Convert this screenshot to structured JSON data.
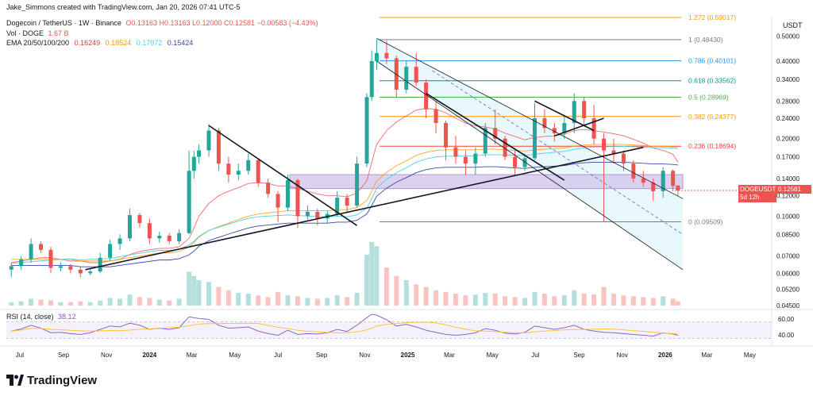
{
  "header": {
    "created_by": "Jake_Simmons created with TradingView.com, Jan 20, 2026 07:41 UTC-5"
  },
  "legend": {
    "symbol": "Dogecoin / TetherUS · 1W · Binance",
    "ohlc": "O0.13163 H0.13163 L0.12000 C0.12581 −0.00583 (−4.43%)",
    "vol_label": "Vol · DOGE",
    "vol_value": "1.67 B",
    "ema_label": "EMA 20/50/100/200",
    "ema_values": [
      {
        "text": "0.16249",
        "color": "#e53935"
      },
      {
        "text": "0.18524",
        "color": "#ff9800"
      },
      {
        "text": "0.17972",
        "color": "#4dd0e1"
      },
      {
        "text": "0.15424",
        "color": "#3949ab"
      }
    ]
  },
  "price_axis": {
    "currency": "USDT",
    "last_label": "DOGEUSDT",
    "last_value": "0.12581",
    "countdown": "5d 12h"
  },
  "rsi": {
    "label": "RSI (14, close)",
    "value": "38.12",
    "ticks": [
      "60.00",
      "40.00"
    ]
  },
  "brand": {
    "name": "TradingView"
  },
  "colors": {
    "up": "#26a69a",
    "down": "#ef5350",
    "trendline": "#131722",
    "channel_fill": "#e0f7fa",
    "zone_fill": "#d1c4e9",
    "rsi_line": "#7e57c2",
    "rsi_ma": "#fbc02d"
  },
  "chart_data": {
    "type": "candlestick",
    "title": "Dogecoin / TetherUS · 1W · Binance",
    "y_scale": "log",
    "ylim": [
      0.045,
      0.52
    ],
    "y_ticks": [
      "0.50000",
      "0.40000",
      "0.34000",
      "0.28000",
      "0.24000",
      "0.20000",
      "0.17000",
      "0.14000",
      "0.12000",
      "0.10000",
      "0.08500",
      "0.07000",
      "0.06000",
      "0.05200",
      "0.04500"
    ],
    "x_ticks": [
      "Jul",
      "Sep",
      "Nov",
      "2024",
      "Mar",
      "May",
      "Jul",
      "Sep",
      "Nov",
      "2025",
      "Mar",
      "May",
      "Jul",
      "Sep",
      "Nov",
      "2026",
      "Mar",
      "May"
    ],
    "x_range": [
      "2023-06-12",
      "2026-06-01"
    ],
    "fib_levels": [
      {
        "ratio": "1.272",
        "value": 0.59017,
        "label": "1.272 (0.59017)",
        "color": "#ff9800"
      },
      {
        "ratio": "1",
        "value": 0.4843,
        "label": "1 (0.48430)",
        "color": "#787b86"
      },
      {
        "ratio": "0.786",
        "value": 0.40101,
        "label": "0.786 (0.40101)",
        "color": "#2196f3"
      },
      {
        "ratio": "0.618",
        "value": 0.33562,
        "label": "0.618 (0.33562)",
        "color": "#009688"
      },
      {
        "ratio": "0.5",
        "value": 0.28969,
        "label": "0.5 (0.28969)",
        "color": "#4caf50"
      },
      {
        "ratio": "0.382",
        "value": 0.24377,
        "label": "0.382 (0.24377)",
        "color": "#ff9800"
      },
      {
        "ratio": "0.236",
        "value": 0.18694,
        "label": "0.236 (0.18694)",
        "color": "#f44336"
      },
      {
        "ratio": "0",
        "value": 0.09509,
        "label": "0 (0.09509)",
        "color": "#787b86"
      }
    ],
    "candles": [
      {
        "date": "2023-06-19",
        "o": 0.062,
        "h": 0.066,
        "l": 0.058,
        "c": 0.064
      },
      {
        "date": "2023-07-03",
        "o": 0.064,
        "h": 0.07,
        "l": 0.062,
        "c": 0.068
      },
      {
        "date": "2023-07-17",
        "o": 0.068,
        "h": 0.082,
        "l": 0.066,
        "c": 0.078
      },
      {
        "date": "2023-07-31",
        "o": 0.078,
        "h": 0.08,
        "l": 0.072,
        "c": 0.074
      },
      {
        "date": "2023-08-14",
        "o": 0.074,
        "h": 0.076,
        "l": 0.06,
        "c": 0.063
      },
      {
        "date": "2023-08-28",
        "o": 0.063,
        "h": 0.066,
        "l": 0.061,
        "c": 0.064
      },
      {
        "date": "2023-09-11",
        "o": 0.064,
        "h": 0.065,
        "l": 0.06,
        "c": 0.062
      },
      {
        "date": "2023-09-25",
        "o": 0.062,
        "h": 0.064,
        "l": 0.058,
        "c": 0.06
      },
      {
        "date": "2023-10-09",
        "o": 0.06,
        "h": 0.063,
        "l": 0.059,
        "c": 0.061
      },
      {
        "date": "2023-10-23",
        "o": 0.061,
        "h": 0.072,
        "l": 0.06,
        "c": 0.069
      },
      {
        "date": "2023-11-06",
        "o": 0.069,
        "h": 0.081,
        "l": 0.067,
        "c": 0.078
      },
      {
        "date": "2023-11-20",
        "o": 0.078,
        "h": 0.085,
        "l": 0.074,
        "c": 0.082
      },
      {
        "date": "2023-12-04",
        "o": 0.082,
        "h": 0.107,
        "l": 0.08,
        "c": 0.101
      },
      {
        "date": "2023-12-18",
        "o": 0.101,
        "h": 0.103,
        "l": 0.09,
        "c": 0.094
      },
      {
        "date": "2024-01-01",
        "o": 0.094,
        "h": 0.098,
        "l": 0.078,
        "c": 0.082
      },
      {
        "date": "2024-01-15",
        "o": 0.082,
        "h": 0.087,
        "l": 0.079,
        "c": 0.084
      },
      {
        "date": "2024-01-29",
        "o": 0.084,
        "h": 0.086,
        "l": 0.078,
        "c": 0.08
      },
      {
        "date": "2024-02-12",
        "o": 0.08,
        "h": 0.089,
        "l": 0.078,
        "c": 0.086
      },
      {
        "date": "2024-02-26",
        "o": 0.086,
        "h": 0.18,
        "l": 0.085,
        "c": 0.15
      },
      {
        "date": "2024-03-04",
        "o": 0.15,
        "h": 0.18,
        "l": 0.14,
        "c": 0.17
      },
      {
        "date": "2024-03-11",
        "o": 0.17,
        "h": 0.19,
        "l": 0.16,
        "c": 0.18
      },
      {
        "date": "2024-03-25",
        "o": 0.18,
        "h": 0.228,
        "l": 0.17,
        "c": 0.215
      },
      {
        "date": "2024-04-08",
        "o": 0.215,
        "h": 0.22,
        "l": 0.15,
        "c": 0.16
      },
      {
        "date": "2024-04-22",
        "o": 0.16,
        "h": 0.17,
        "l": 0.135,
        "c": 0.145
      },
      {
        "date": "2024-05-06",
        "o": 0.145,
        "h": 0.16,
        "l": 0.138,
        "c": 0.15
      },
      {
        "date": "2024-05-20",
        "o": 0.15,
        "h": 0.175,
        "l": 0.145,
        "c": 0.165
      },
      {
        "date": "2024-06-03",
        "o": 0.165,
        "h": 0.168,
        "l": 0.13,
        "c": 0.135
      },
      {
        "date": "2024-06-17",
        "o": 0.135,
        "h": 0.14,
        "l": 0.118,
        "c": 0.122
      },
      {
        "date": "2024-07-01",
        "o": 0.122,
        "h": 0.125,
        "l": 0.095,
        "c": 0.108
      },
      {
        "date": "2024-07-15",
        "o": 0.108,
        "h": 0.145,
        "l": 0.105,
        "c": 0.138
      },
      {
        "date": "2024-07-29",
        "o": 0.138,
        "h": 0.14,
        "l": 0.09,
        "c": 0.1
      },
      {
        "date": "2024-08-12",
        "o": 0.1,
        "h": 0.11,
        "l": 0.097,
        "c": 0.104
      },
      {
        "date": "2024-08-26",
        "o": 0.104,
        "h": 0.107,
        "l": 0.092,
        "c": 0.098
      },
      {
        "date": "2024-09-09",
        "o": 0.098,
        "h": 0.105,
        "l": 0.094,
        "c": 0.102
      },
      {
        "date": "2024-09-23",
        "o": 0.102,
        "h": 0.125,
        "l": 0.1,
        "c": 0.118
      },
      {
        "date": "2024-10-07",
        "o": 0.118,
        "h": 0.122,
        "l": 0.104,
        "c": 0.11
      },
      {
        "date": "2024-10-21",
        "o": 0.11,
        "h": 0.17,
        "l": 0.108,
        "c": 0.16
      },
      {
        "date": "2024-11-04",
        "o": 0.16,
        "h": 0.3,
        "l": 0.155,
        "c": 0.29
      },
      {
        "date": "2024-11-11",
        "o": 0.29,
        "h": 0.44,
        "l": 0.28,
        "c": 0.4
      },
      {
        "date": "2024-11-18",
        "o": 0.4,
        "h": 0.484,
        "l": 0.37,
        "c": 0.43
      },
      {
        "date": "2024-12-02",
        "o": 0.43,
        "h": 0.48,
        "l": 0.39,
        "c": 0.41
      },
      {
        "date": "2024-12-16",
        "o": 0.41,
        "h": 0.42,
        "l": 0.29,
        "c": 0.31
      },
      {
        "date": "2024-12-30",
        "o": 0.31,
        "h": 0.4,
        "l": 0.3,
        "c": 0.38
      },
      {
        "date": "2025-01-13",
        "o": 0.38,
        "h": 0.43,
        "l": 0.32,
        "c": 0.33
      },
      {
        "date": "2025-01-27",
        "o": 0.33,
        "h": 0.34,
        "l": 0.24,
        "c": 0.26
      },
      {
        "date": "2025-02-10",
        "o": 0.26,
        "h": 0.28,
        "l": 0.21,
        "c": 0.23
      },
      {
        "date": "2025-02-24",
        "o": 0.23,
        "h": 0.235,
        "l": 0.165,
        "c": 0.185
      },
      {
        "date": "2025-03-10",
        "o": 0.185,
        "h": 0.205,
        "l": 0.16,
        "c": 0.17
      },
      {
        "date": "2025-03-24",
        "o": 0.17,
        "h": 0.18,
        "l": 0.145,
        "c": 0.16
      },
      {
        "date": "2025-04-07",
        "o": 0.16,
        "h": 0.185,
        "l": 0.145,
        "c": 0.175
      },
      {
        "date": "2025-04-21",
        "o": 0.175,
        "h": 0.23,
        "l": 0.17,
        "c": 0.22
      },
      {
        "date": "2025-05-05",
        "o": 0.22,
        "h": 0.26,
        "l": 0.19,
        "c": 0.2
      },
      {
        "date": "2025-05-19",
        "o": 0.2,
        "h": 0.205,
        "l": 0.165,
        "c": 0.17
      },
      {
        "date": "2025-06-02",
        "o": 0.17,
        "h": 0.18,
        "l": 0.145,
        "c": 0.155
      },
      {
        "date": "2025-06-16",
        "o": 0.155,
        "h": 0.175,
        "l": 0.15,
        "c": 0.168
      },
      {
        "date": "2025-06-30",
        "o": 0.168,
        "h": 0.275,
        "l": 0.165,
        "c": 0.24
      },
      {
        "date": "2025-07-14",
        "o": 0.24,
        "h": 0.26,
        "l": 0.21,
        "c": 0.22
      },
      {
        "date": "2025-07-28",
        "o": 0.22,
        "h": 0.23,
        "l": 0.195,
        "c": 0.21
      },
      {
        "date": "2025-08-11",
        "o": 0.21,
        "h": 0.245,
        "l": 0.2,
        "c": 0.23
      },
      {
        "date": "2025-08-25",
        "o": 0.23,
        "h": 0.3,
        "l": 0.21,
        "c": 0.28
      },
      {
        "date": "2025-09-08",
        "o": 0.28,
        "h": 0.29,
        "l": 0.225,
        "c": 0.24
      },
      {
        "date": "2025-09-22",
        "o": 0.24,
        "h": 0.27,
        "l": 0.19,
        "c": 0.2
      },
      {
        "date": "2025-10-06",
        "o": 0.2,
        "h": 0.21,
        "l": 0.095,
        "c": 0.18
      },
      {
        "date": "2025-10-20",
        "o": 0.18,
        "h": 0.2,
        "l": 0.16,
        "c": 0.175
      },
      {
        "date": "2025-11-03",
        "o": 0.175,
        "h": 0.18,
        "l": 0.15,
        "c": 0.16
      },
      {
        "date": "2025-11-17",
        "o": 0.16,
        "h": 0.165,
        "l": 0.135,
        "c": 0.14
      },
      {
        "date": "2025-12-01",
        "o": 0.14,
        "h": 0.15,
        "l": 0.13,
        "c": 0.135
      },
      {
        "date": "2025-12-15",
        "o": 0.135,
        "h": 0.14,
        "l": 0.115,
        "c": 0.125
      },
      {
        "date": "2025-12-29",
        "o": 0.125,
        "h": 0.155,
        "l": 0.118,
        "c": 0.15
      },
      {
        "date": "2026-01-12",
        "o": 0.15,
        "h": 0.152,
        "l": 0.125,
        "c": 0.131
      },
      {
        "date": "2026-01-19",
        "o": 0.13163,
        "h": 0.13163,
        "l": 0.12,
        "c": 0.12581
      }
    ],
    "volume": [
      4,
      5,
      8,
      7,
      6,
      4,
      4,
      5,
      4,
      6,
      9,
      8,
      13,
      10,
      9,
      7,
      6,
      8,
      40,
      35,
      30,
      28,
      22,
      18,
      15,
      14,
      12,
      10,
      16,
      12,
      11,
      9,
      8,
      9,
      12,
      10,
      15,
      60,
      75,
      70,
      45,
      35,
      30,
      25,
      22,
      18,
      16,
      14,
      12,
      13,
      15,
      14,
      11,
      10,
      9,
      16,
      14,
      11,
      12,
      18,
      14,
      13,
      22,
      14,
      12,
      11,
      10,
      9,
      11,
      8,
      5
    ],
    "rsi": [
      48,
      53,
      62,
      55,
      44,
      45,
      42,
      40,
      44,
      52,
      60,
      58,
      67,
      62,
      52,
      55,
      52,
      56,
      82,
      80,
      78,
      76,
      62,
      55,
      56,
      58,
      48,
      42,
      38,
      50,
      40,
      42,
      41,
      44,
      52,
      47,
      62,
      80,
      88,
      86,
      75,
      60,
      64,
      58,
      50,
      45,
      40,
      38,
      40,
      44,
      54,
      50,
      43,
      41,
      45,
      60,
      56,
      52,
      56,
      62,
      52,
      48,
      45,
      44,
      42,
      40,
      38,
      36,
      44,
      41,
      38
    ],
    "ema": {
      "EMA20": [
        0.066,
        0.067,
        0.068,
        0.069,
        0.069,
        0.068,
        0.067,
        0.067,
        0.066,
        0.066,
        0.067,
        0.068,
        0.071,
        0.073,
        0.074,
        0.075,
        0.075,
        0.076,
        0.082,
        0.09,
        0.1,
        0.112,
        0.12,
        0.125,
        0.129,
        0.134,
        0.135,
        0.134,
        0.131,
        0.131,
        0.128,
        0.125,
        0.122,
        0.12,
        0.12,
        0.119,
        0.123,
        0.137,
        0.162,
        0.19,
        0.215,
        0.232,
        0.245,
        0.258,
        0.262,
        0.26,
        0.252,
        0.24,
        0.23,
        0.224,
        0.222,
        0.218,
        0.21,
        0.204,
        0.198,
        0.202,
        0.204,
        0.205,
        0.208,
        0.215,
        0.217,
        0.215,
        0.212,
        0.209,
        0.205,
        0.199,
        0.192,
        0.184,
        0.18,
        0.174,
        0.162
      ],
      "EMA50": [
        0.068,
        0.068,
        0.068,
        0.068,
        0.068,
        0.068,
        0.068,
        0.067,
        0.067,
        0.067,
        0.067,
        0.068,
        0.069,
        0.07,
        0.071,
        0.072,
        0.072,
        0.073,
        0.076,
        0.079,
        0.083,
        0.088,
        0.091,
        0.094,
        0.097,
        0.1,
        0.102,
        0.103,
        0.104,
        0.105,
        0.105,
        0.105,
        0.105,
        0.105,
        0.106,
        0.106,
        0.108,
        0.115,
        0.125,
        0.137,
        0.148,
        0.157,
        0.164,
        0.172,
        0.177,
        0.18,
        0.181,
        0.181,
        0.181,
        0.181,
        0.182,
        0.182,
        0.181,
        0.18,
        0.179,
        0.181,
        0.182,
        0.183,
        0.184,
        0.187,
        0.189,
        0.19,
        0.19,
        0.19,
        0.19,
        0.189,
        0.188,
        0.187,
        0.187,
        0.186,
        0.185
      ]
    }
  }
}
